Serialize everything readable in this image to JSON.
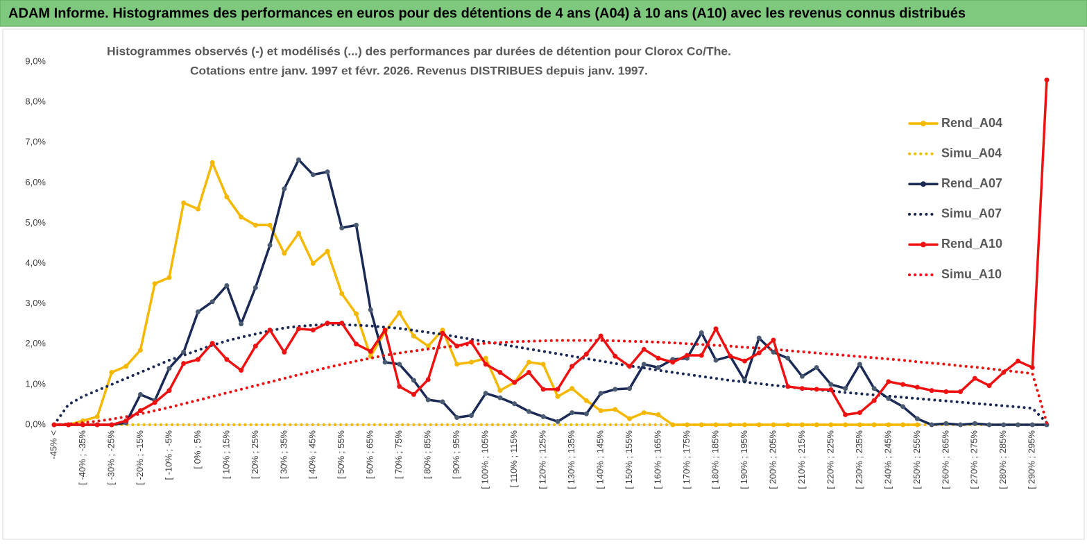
{
  "chart_data": {
    "type": "line",
    "title": "ADAM Informe. Histogrammes des performances en euros pour des détentions de 4 ans (A04) à 10 ans (A10) avec les revenus connus distribués",
    "subtitle": [
      "Histogrammes observés (-) et modélisés (...)  des performances par durées de détention pour Clorox Co/The.",
      "Cotations entre janv. 1997 et févr. 2026. Revenus DISTRIBUES depuis janv. 1997."
    ],
    "categories": [
      "-45% <",
      null,
      "[ -40% ; -35%",
      null,
      "[ -30% ; -25%",
      null,
      "[ -20% ; -15%",
      null,
      "[ -10% ; -5%",
      null,
      "[ 0% ; 5%",
      null,
      "[ 10% ; 15%",
      null,
      "[ 20% ; 25%",
      null,
      "[ 30% ; 35%",
      null,
      "[ 40% ; 45%",
      null,
      "[ 50% ; 55%",
      null,
      "[ 60% ; 65%",
      null,
      "[ 70% ; 75%",
      null,
      "[ 80% ; 85%",
      null,
      "[ 90% ; 95%",
      null,
      "[ 100% ; 105%",
      null,
      "[ 110% ; 115%",
      null,
      "[ 120% ; 125%",
      null,
      "[ 130% ; 135%",
      null,
      "[ 140% ; 145%",
      null,
      "[ 150% ; 155%",
      null,
      "[ 160% ; 165%",
      null,
      "[ 170% ; 175%",
      null,
      "[ 180% ; 185%",
      null,
      "[ 190% ; 195%",
      null,
      "[ 200% ; 205%",
      null,
      "[ 210% ; 215%",
      null,
      "[ 220% ; 225%",
      null,
      "[ 230% ; 235%",
      null,
      "[ 240% ; 245%",
      null,
      "[ 250% ; 255%",
      null,
      "[ 260% ; 265%",
      null,
      "[ 270% ; 275%",
      null,
      "[ 280% ; 285%",
      null,
      "[ 290% ; 295%",
      null
    ],
    "series": [
      {
        "name": "Rend_A04",
        "color": "#f5b800",
        "style": "solid",
        "markers": true,
        "values": [
          0,
          0,
          0.1,
          0.2,
          1.3,
          1.45,
          1.85,
          3.5,
          3.65,
          5.5,
          5.35,
          6.5,
          5.65,
          5.15,
          4.95,
          4.95,
          4.25,
          4.75,
          4.0,
          4.3,
          3.25,
          2.75,
          1.7,
          2.3,
          2.78,
          2.2,
          1.95,
          2.35,
          1.5,
          1.55,
          1.65,
          0.85,
          1.05,
          1.55,
          1.5,
          0.7,
          0.9,
          0.6,
          0.35,
          0.38,
          0.15,
          0.3,
          0.25,
          0,
          0,
          0,
          0,
          0,
          0,
          0,
          0,
          0,
          0,
          0,
          0,
          0,
          0,
          0,
          0,
          0,
          0,
          null,
          null,
          null,
          null,
          null,
          null,
          null,
          null,
          null
        ]
      },
      {
        "name": "Simu_A04",
        "color": "#f5b800",
        "style": "dotted",
        "markers": false,
        "values": [
          0,
          0,
          0,
          0,
          0,
          0,
          0,
          0,
          0,
          0,
          0,
          0,
          0,
          0,
          0,
          0,
          0,
          0,
          0,
          0,
          0,
          0,
          0,
          0,
          0,
          0,
          0,
          0,
          0,
          0,
          0,
          0,
          0,
          0,
          0,
          0,
          0,
          0,
          0,
          0,
          0,
          0,
          0,
          0,
          0,
          0,
          0,
          0,
          0,
          0,
          0,
          0,
          0,
          0,
          0,
          0,
          0,
          0,
          0,
          0,
          0,
          0,
          0,
          0,
          0,
          0,
          0,
          0,
          0,
          0
        ]
      },
      {
        "name": "Rend_A07",
        "color": "#1a2a55",
        "style": "solid",
        "markers": true,
        "values": [
          0,
          0,
          0,
          0,
          0,
          0.05,
          0.75,
          0.6,
          1.4,
          1.8,
          2.8,
          3.05,
          3.45,
          2.5,
          3.4,
          4.45,
          5.85,
          6.57,
          6.2,
          6.27,
          4.88,
          4.95,
          2.85,
          1.55,
          1.5,
          1.1,
          0.62,
          0.57,
          0.18,
          0.23,
          0.78,
          0.67,
          0.52,
          0.33,
          0.2,
          0.08,
          0.3,
          0.27,
          0.78,
          0.88,
          0.9,
          1.5,
          1.42,
          1.62,
          1.65,
          2.28,
          1.6,
          1.7,
          1.1,
          2.15,
          1.8,
          1.65,
          1.2,
          1.42,
          1.0,
          0.9,
          1.5,
          0.9,
          0.65,
          0.45,
          0.15,
          0,
          0.03,
          0,
          0.03,
          0,
          0,
          0,
          0,
          0
        ]
      },
      {
        "name": "Simu_A07",
        "color": "#1a2a55",
        "style": "dotted",
        "markers": false,
        "values": [
          0,
          0.5,
          0.7,
          0.85,
          1.0,
          1.15,
          1.3,
          1.45,
          1.6,
          1.72,
          1.85,
          1.97,
          2.08,
          2.17,
          2.25,
          2.33,
          2.4,
          2.44,
          2.47,
          2.48,
          2.48,
          2.47,
          2.45,
          2.42,
          2.39,
          2.34,
          2.29,
          2.24,
          2.18,
          2.12,
          2.06,
          2.0,
          1.94,
          1.88,
          1.82,
          1.76,
          1.7,
          1.64,
          1.58,
          1.52,
          1.46,
          1.41,
          1.35,
          1.3,
          1.25,
          1.2,
          1.15,
          1.1,
          1.06,
          1.02,
          0.98,
          0.94,
          0.9,
          0.87,
          0.84,
          0.8,
          0.77,
          0.74,
          0.71,
          0.68,
          0.65,
          0.62,
          0.59,
          0.56,
          0.53,
          0.5,
          0.47,
          0.44,
          0.41,
          0.05
        ]
      },
      {
        "name": "Rend_A10",
        "color": "#ee1111",
        "style": "solid",
        "markers": true,
        "values": [
          0,
          0,
          0,
          0,
          0,
          0.1,
          0.35,
          0.55,
          0.85,
          1.52,
          1.62,
          2.02,
          1.62,
          1.35,
          1.95,
          2.35,
          1.8,
          2.38,
          2.35,
          2.52,
          2.52,
          2.0,
          1.82,
          2.35,
          0.95,
          0.75,
          1.12,
          2.27,
          1.95,
          2.05,
          1.5,
          1.3,
          1.05,
          1.3,
          0.88,
          0.88,
          1.45,
          1.75,
          2.2,
          1.7,
          1.45,
          1.87,
          1.65,
          1.55,
          1.72,
          1.72,
          2.38,
          1.7,
          1.58,
          1.78,
          2.1,
          0.95,
          0.9,
          0.88,
          0.87,
          0.25,
          0.3,
          0.6,
          1.07,
          1.0,
          0.93,
          0.85,
          0.82,
          0.82,
          1.15,
          0.97,
          1.3,
          1.58,
          1.42,
          8.55
        ]
      },
      {
        "name": "Simu_A10",
        "color": "#ee1111",
        "style": "dotted",
        "markers": false,
        "values": [
          0,
          0.02,
          0.05,
          0.09,
          0.14,
          0.2,
          0.27,
          0.35,
          0.43,
          0.52,
          0.61,
          0.7,
          0.79,
          0.88,
          0.97,
          1.06,
          1.15,
          1.24,
          1.33,
          1.42,
          1.5,
          1.58,
          1.65,
          1.72,
          1.78,
          1.83,
          1.88,
          1.92,
          1.96,
          1.99,
          2.02,
          2.04,
          2.06,
          2.07,
          2.08,
          2.09,
          2.09,
          2.09,
          2.09,
          2.08,
          2.07,
          2.06,
          2.05,
          2.03,
          2.01,
          1.99,
          1.97,
          1.95,
          1.92,
          1.9,
          1.87,
          1.84,
          1.81,
          1.78,
          1.75,
          1.72,
          1.69,
          1.66,
          1.63,
          1.6,
          1.56,
          1.53,
          1.5,
          1.46,
          1.43,
          1.39,
          1.35,
          1.31,
          1.27,
          0.05
        ]
      }
    ],
    "ylim": [
      0,
      9
    ],
    "yticks": [
      {
        "value": 0,
        "label": "0,0%"
      },
      {
        "value": 1,
        "label": "1,0%"
      },
      {
        "value": 2,
        "label": "2,0%"
      },
      {
        "value": 3,
        "label": "3,0%"
      },
      {
        "value": 4,
        "label": "4,0%"
      },
      {
        "value": 5,
        "label": "5,0%"
      },
      {
        "value": 6,
        "label": "6,0%"
      },
      {
        "value": 7,
        "label": "7,0%"
      },
      {
        "value": 8,
        "label": "8,0%"
      },
      {
        "value": 9,
        "label": "9,0%"
      }
    ],
    "grid": false,
    "legend": "right"
  }
}
